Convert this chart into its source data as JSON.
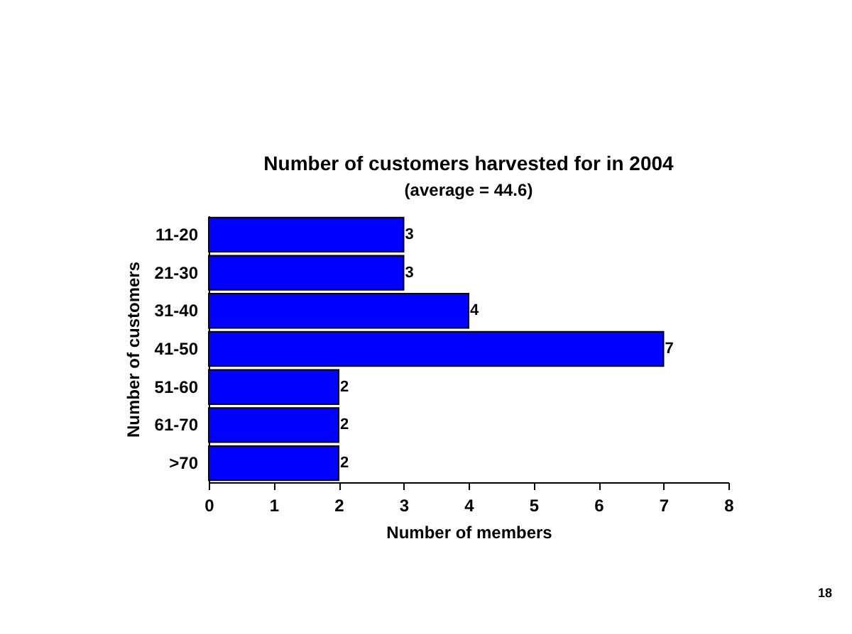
{
  "chart_data": {
    "type": "bar",
    "orientation": "horizontal",
    "title": "Number of customers harvested for in 2004",
    "subtitle": "(average = 44.6)",
    "xlabel": "Number of members",
    "ylabel": "Number of customers",
    "categories": [
      "11-20",
      "21-30",
      "31-40",
      "41-50",
      "51-60",
      "61-70",
      ">70"
    ],
    "values": [
      3,
      3,
      4,
      7,
      2,
      2,
      2
    ],
    "color": "#0000ff",
    "xlim": [
      0,
      8
    ],
    "xticks": [
      0,
      1,
      2,
      3,
      4,
      5,
      6,
      7,
      8
    ],
    "grid": false,
    "data_labels": true,
    "annotations": [
      "18"
    ]
  }
}
